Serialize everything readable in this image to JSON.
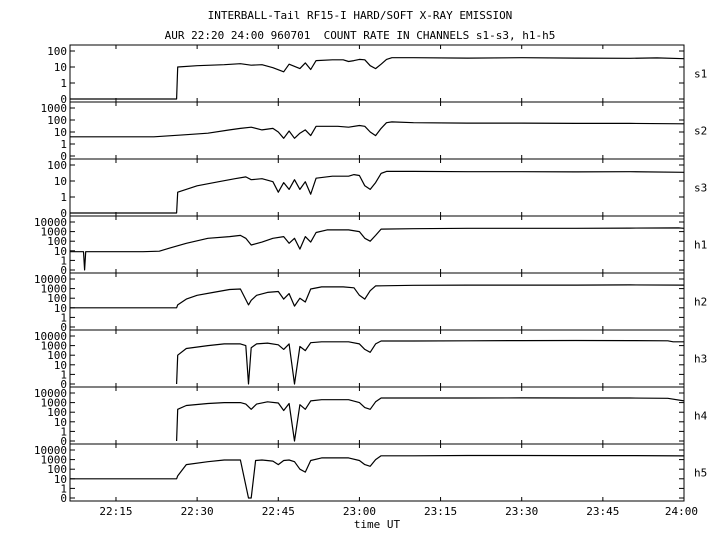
{
  "chart_data": {
    "type": "line",
    "title": "INTERBALL-Tail RF15-I HARD/SOFT X-RAY EMISSION",
    "subtitle": "AUR 22:20 24:00 960701  COUNT RATE IN CHANNELS s1-s3, h1-h5",
    "xlabel": "time UT",
    "x_ticks": [
      "22:15",
      "22:30",
      "22:45",
      "23:00",
      "23:15",
      "23:30",
      "23:45",
      "24:00"
    ],
    "x_tick_minutes": [
      15,
      30,
      45,
      60,
      75,
      90,
      105,
      120
    ],
    "xlim_minutes": [
      6.5,
      120
    ],
    "line_color": "#000000",
    "grid": false,
    "scale": "log",
    "panels": [
      {
        "name": "s1",
        "yticks": [
          "100",
          "10",
          "1",
          "0"
        ],
        "top": 100,
        "points": [
          [
            6.5,
            0
          ],
          [
            26.2,
            0
          ],
          [
            26.4,
            10
          ],
          [
            30,
            12
          ],
          [
            35,
            14
          ],
          [
            38,
            16
          ],
          [
            40,
            13
          ],
          [
            42,
            14
          ],
          [
            44,
            9
          ],
          [
            46,
            5
          ],
          [
            47,
            15
          ],
          [
            49,
            8
          ],
          [
            50,
            18
          ],
          [
            51,
            7
          ],
          [
            52,
            25
          ],
          [
            55,
            28
          ],
          [
            57,
            28
          ],
          [
            58,
            22
          ],
          [
            59,
            25
          ],
          [
            60,
            30
          ],
          [
            61,
            28
          ],
          [
            62,
            12
          ],
          [
            63,
            8
          ],
          [
            64,
            15
          ],
          [
            65,
            30
          ],
          [
            66,
            38
          ],
          [
            70,
            38
          ],
          [
            80,
            36
          ],
          [
            90,
            38
          ],
          [
            100,
            36
          ],
          [
            110,
            35
          ],
          [
            115,
            37
          ],
          [
            120,
            33
          ]
        ]
      },
      {
        "name": "s2",
        "yticks": [
          "1000",
          "100",
          "10",
          "1",
          "0"
        ],
        "top": 1000,
        "points": [
          [
            6.5,
            4
          ],
          [
            15,
            4
          ],
          [
            22,
            4
          ],
          [
            28,
            6
          ],
          [
            32,
            8
          ],
          [
            36,
            15
          ],
          [
            38,
            20
          ],
          [
            40,
            25
          ],
          [
            42,
            15
          ],
          [
            44,
            20
          ],
          [
            45,
            10
          ],
          [
            46,
            3
          ],
          [
            47,
            12
          ],
          [
            48,
            3
          ],
          [
            49,
            8
          ],
          [
            50,
            15
          ],
          [
            51,
            5
          ],
          [
            52,
            30
          ],
          [
            56,
            30
          ],
          [
            58,
            25
          ],
          [
            60,
            35
          ],
          [
            61,
            30
          ],
          [
            62,
            10
          ],
          [
            63,
            5
          ],
          [
            64,
            20
          ],
          [
            65,
            60
          ],
          [
            66,
            70
          ],
          [
            70,
            60
          ],
          [
            80,
            55
          ],
          [
            90,
            55
          ],
          [
            100,
            52
          ],
          [
            110,
            52
          ],
          [
            120,
            48
          ]
        ]
      },
      {
        "name": "s3",
        "yticks": [
          "100",
          "10",
          "1",
          "0"
        ],
        "top": 100,
        "points": [
          [
            6.5,
            0
          ],
          [
            26.2,
            0
          ],
          [
            26.4,
            2
          ],
          [
            30,
            5
          ],
          [
            34,
            9
          ],
          [
            37,
            14
          ],
          [
            39,
            18
          ],
          [
            40,
            12
          ],
          [
            42,
            14
          ],
          [
            44,
            9
          ],
          [
            45,
            2
          ],
          [
            46,
            8
          ],
          [
            47,
            3
          ],
          [
            48,
            12
          ],
          [
            49,
            3
          ],
          [
            50,
            9
          ],
          [
            51,
            1.5
          ],
          [
            52,
            15
          ],
          [
            55,
            20
          ],
          [
            58,
            20
          ],
          [
            59,
            25
          ],
          [
            60,
            22
          ],
          [
            61,
            5
          ],
          [
            62,
            3
          ],
          [
            63,
            8
          ],
          [
            64,
            30
          ],
          [
            65,
            40
          ],
          [
            70,
            40
          ],
          [
            80,
            38
          ],
          [
            90,
            38
          ],
          [
            100,
            37
          ],
          [
            110,
            38
          ],
          [
            120,
            35
          ]
        ]
      },
      {
        "name": "h1",
        "yticks": [
          "10000",
          "1000",
          "100",
          "10",
          "1",
          "0"
        ],
        "top": 10000,
        "points": [
          [
            6.5,
            8
          ],
          [
            9,
            8
          ],
          [
            9.2,
            0
          ],
          [
            9.4,
            8
          ],
          [
            15,
            8
          ],
          [
            20,
            8
          ],
          [
            23,
            9
          ],
          [
            25,
            20
          ],
          [
            28,
            60
          ],
          [
            32,
            200
          ],
          [
            36,
            300
          ],
          [
            38,
            400
          ],
          [
            39,
            200
          ],
          [
            40,
            40
          ],
          [
            42,
            80
          ],
          [
            44,
            200
          ],
          [
            46,
            300
          ],
          [
            47,
            60
          ],
          [
            48,
            200
          ],
          [
            49,
            15
          ],
          [
            50,
            300
          ],
          [
            51,
            80
          ],
          [
            52,
            800
          ],
          [
            54,
            1500
          ],
          [
            58,
            1500
          ],
          [
            60,
            1000
          ],
          [
            61,
            200
          ],
          [
            62,
            100
          ],
          [
            63,
            400
          ],
          [
            64,
            1800
          ],
          [
            70,
            2000
          ],
          [
            80,
            2200
          ],
          [
            90,
            2200
          ],
          [
            100,
            2200
          ],
          [
            110,
            2300
          ],
          [
            119,
            2400
          ],
          [
            120,
            2200
          ]
        ]
      },
      {
        "name": "h2",
        "yticks": [
          "10000",
          "1000",
          "100",
          "10",
          "1",
          "0"
        ],
        "top": 10000,
        "points": [
          [
            6.5,
            10
          ],
          [
            26.2,
            10
          ],
          [
            26.4,
            20
          ],
          [
            28,
            80
          ],
          [
            30,
            200
          ],
          [
            33,
            400
          ],
          [
            36,
            800
          ],
          [
            38,
            900
          ],
          [
            39.5,
            20
          ],
          [
            40,
            60
          ],
          [
            41,
            200
          ],
          [
            43,
            400
          ],
          [
            45,
            500
          ],
          [
            46,
            80
          ],
          [
            47,
            300
          ],
          [
            48,
            15
          ],
          [
            49,
            100
          ],
          [
            50,
            40
          ],
          [
            51,
            900
          ],
          [
            53,
            1500
          ],
          [
            57,
            1500
          ],
          [
            59,
            1200
          ],
          [
            60,
            200
          ],
          [
            61,
            80
          ],
          [
            62,
            600
          ],
          [
            63,
            1900
          ],
          [
            70,
            2200
          ],
          [
            80,
            2300
          ],
          [
            90,
            2300
          ],
          [
            100,
            2300
          ],
          [
            110,
            2400
          ],
          [
            120,
            2300
          ]
        ]
      },
      {
        "name": "h3",
        "yticks": [
          "10000",
          "1000",
          "100",
          "10",
          "1",
          "0"
        ],
        "top": 10000,
        "points": [
          [
            26.2,
            0
          ],
          [
            26.4,
            100
          ],
          [
            28,
            500
          ],
          [
            32,
            1000
          ],
          [
            35,
            1500
          ],
          [
            38,
            1500
          ],
          [
            39,
            1000
          ],
          [
            39.5,
            0
          ],
          [
            40,
            600
          ],
          [
            41,
            1500
          ],
          [
            43,
            1800
          ],
          [
            45,
            1200
          ],
          [
            46,
            400
          ],
          [
            47,
            1500
          ],
          [
            48,
            0
          ],
          [
            49,
            800
          ],
          [
            50,
            300
          ],
          [
            51,
            2000
          ],
          [
            53,
            2500
          ],
          [
            58,
            2500
          ],
          [
            60,
            1500
          ],
          [
            61,
            400
          ],
          [
            62,
            200
          ],
          [
            63,
            1500
          ],
          [
            64,
            3000
          ],
          [
            70,
            3000
          ],
          [
            80,
            3200
          ],
          [
            90,
            3300
          ],
          [
            100,
            3400
          ],
          [
            110,
            3300
          ],
          [
            117,
            3200
          ],
          [
            118,
            2500
          ],
          [
            120,
            2500
          ]
        ]
      },
      {
        "name": "h4",
        "yticks": [
          "10000",
          "1000",
          "100",
          "10",
          "1",
          "0"
        ],
        "top": 10000,
        "points": [
          [
            26.2,
            0
          ],
          [
            26.4,
            200
          ],
          [
            28,
            500
          ],
          [
            32,
            800
          ],
          [
            35,
            1000
          ],
          [
            38,
            1000
          ],
          [
            39,
            700
          ],
          [
            40,
            200
          ],
          [
            41,
            700
          ],
          [
            43,
            1200
          ],
          [
            45,
            900
          ],
          [
            46,
            150
          ],
          [
            47,
            800
          ],
          [
            48,
            0
          ],
          [
            49,
            600
          ],
          [
            50,
            200
          ],
          [
            51,
            1500
          ],
          [
            53,
            2000
          ],
          [
            58,
            2000
          ],
          [
            60,
            1000
          ],
          [
            61,
            300
          ],
          [
            62,
            200
          ],
          [
            63,
            1200
          ],
          [
            64,
            3000
          ],
          [
            70,
            3000
          ],
          [
            80,
            3000
          ],
          [
            90,
            3100
          ],
          [
            100,
            3000
          ],
          [
            110,
            3000
          ],
          [
            117,
            2800
          ],
          [
            120,
            1500
          ]
        ]
      },
      {
        "name": "h5",
        "yticks": [
          "10000",
          "1000",
          "100",
          "10",
          "1",
          "0"
        ],
        "top": 10000,
        "points": [
          [
            6.5,
            10
          ],
          [
            26.2,
            10
          ],
          [
            26.4,
            20
          ],
          [
            28,
            300
          ],
          [
            32,
            600
          ],
          [
            35,
            900
          ],
          [
            38,
            900
          ],
          [
            39.5,
            0
          ],
          [
            40,
            0
          ],
          [
            40.8,
            800
          ],
          [
            42,
            900
          ],
          [
            44,
            700
          ],
          [
            45,
            300
          ],
          [
            46,
            800
          ],
          [
            47,
            900
          ],
          [
            48,
            600
          ],
          [
            49,
            100
          ],
          [
            50,
            50
          ],
          [
            51,
            800
          ],
          [
            53,
            1500
          ],
          [
            58,
            1500
          ],
          [
            60,
            800
          ],
          [
            61,
            300
          ],
          [
            62,
            200
          ],
          [
            63,
            1000
          ],
          [
            64,
            2500
          ],
          [
            70,
            2500
          ],
          [
            80,
            2700
          ],
          [
            90,
            2700
          ],
          [
            100,
            2600
          ],
          [
            110,
            2600
          ],
          [
            120,
            2400
          ]
        ]
      }
    ]
  }
}
